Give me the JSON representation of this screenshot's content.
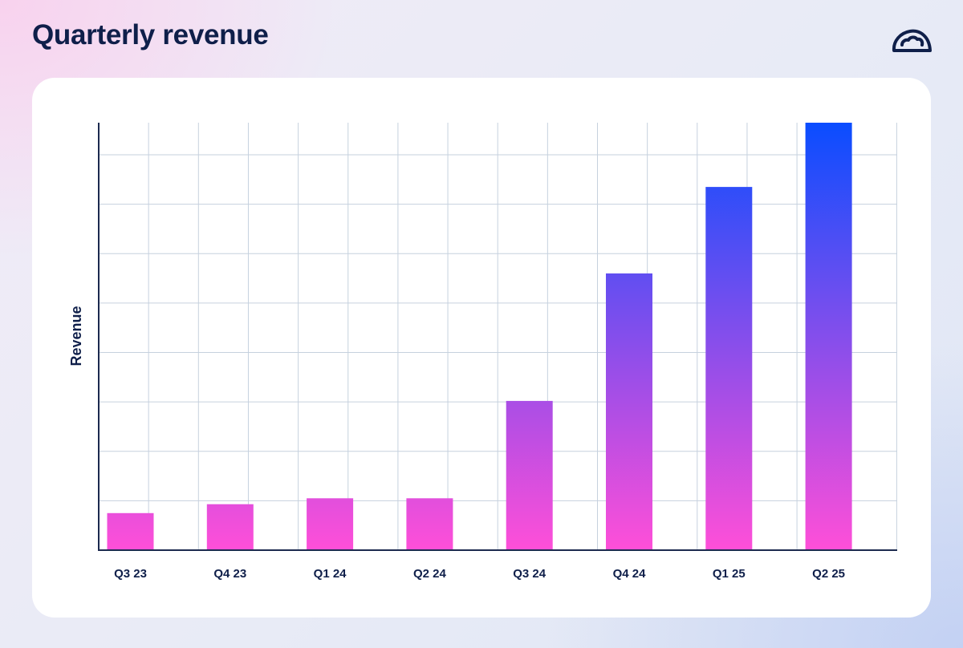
{
  "page": {
    "title": "Quarterly revenue"
  },
  "logo": {
    "icon": "cloud-gauge-icon",
    "color": "#0f1f4a"
  },
  "colors": {
    "bar_top": "#0a4dff",
    "bar_bottom": "#ff4fd8",
    "grid": "#c6d1de",
    "axis": "#1c2a4f",
    "text": "#0f1f4a"
  },
  "chart_data": {
    "type": "bar",
    "title": "Quarterly revenue",
    "xlabel": "",
    "ylabel": "Revenue",
    "categories": [
      "Q3 23",
      "Q4 23",
      "Q1 24",
      "Q2 24",
      "Q3 24",
      "Q4 24",
      "Q1 25",
      "Q2 25"
    ],
    "values": [
      0.75,
      0.93,
      1.05,
      1.05,
      3.02,
      5.6,
      7.35,
      8.65
    ],
    "ylim": [
      0,
      8.65
    ],
    "y_ticks_labeled": false,
    "grid": true,
    "legend": "none"
  }
}
